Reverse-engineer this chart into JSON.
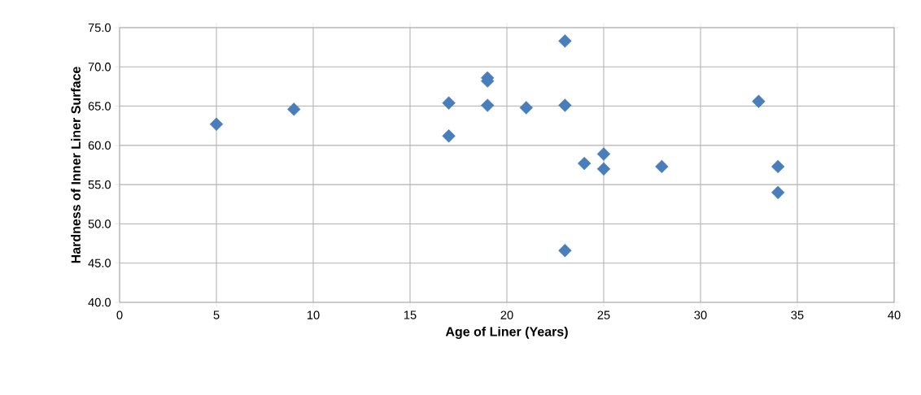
{
  "chart_data": {
    "type": "scatter",
    "xlabel": "Age of Liner    (Years)",
    "ylabel": "Hardness of Inner Liner Surface",
    "x": [
      5,
      9,
      17,
      17,
      19,
      19,
      19,
      21,
      23,
      23,
      23,
      24,
      25,
      25,
      28,
      33,
      34,
      34
    ],
    "series": [
      {
        "color": "#4a7ebb",
        "values": [
          62.7,
          64.6,
          65.4,
          61.2,
          68.6,
          68.2,
          65.1,
          64.8,
          73.3,
          65.1,
          46.6,
          57.7,
          58.9,
          57.0,
          57.3,
          65.6,
          57.3,
          54.0
        ]
      }
    ],
    "xlim": [
      0,
      40
    ],
    "ylim": [
      40,
      75
    ],
    "xticks": [
      0,
      5,
      10,
      15,
      20,
      25,
      30,
      35,
      40
    ],
    "yticks": [
      {
        "value": 40,
        "label": "40.0"
      },
      {
        "value": 45,
        "label": "45.0"
      },
      {
        "value": 50,
        "label": "50.0"
      },
      {
        "value": 55,
        "label": "55.0"
      },
      {
        "value": 60,
        "label": "60.0"
      },
      {
        "value": 65,
        "label": "65.0"
      },
      {
        "value": 70,
        "label": "70.0"
      },
      {
        "value": 75,
        "label": "75.0"
      }
    ],
    "grid": true,
    "marker": "diamond"
  }
}
